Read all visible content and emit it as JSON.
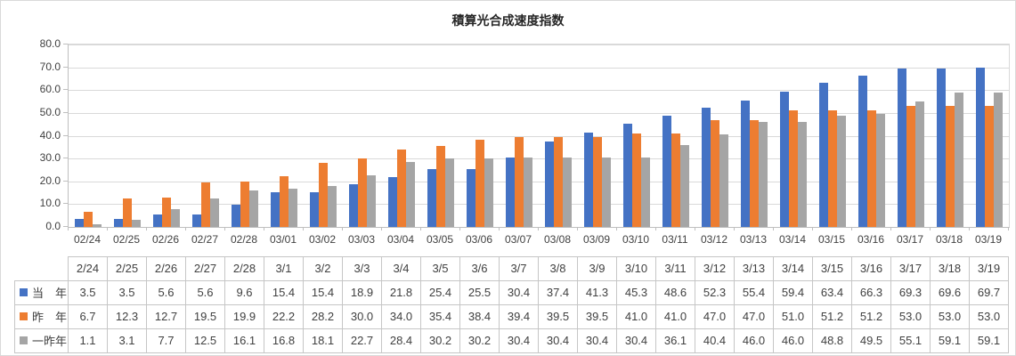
{
  "chart_data": {
    "type": "bar",
    "title": "積算光合成速度指数",
    "categories": [
      "02/24",
      "02/25",
      "02/26",
      "02/27",
      "02/28",
      "03/01",
      "03/02",
      "03/03",
      "03/04",
      "03/05",
      "03/06",
      "03/07",
      "03/08",
      "03/09",
      "03/10",
      "03/11",
      "03/12",
      "03/13",
      "03/14",
      "03/15",
      "03/16",
      "03/17",
      "03/18",
      "03/19"
    ],
    "series": [
      {
        "name": "当　年",
        "color": "#4472C4",
        "values": [
          3.5,
          3.5,
          5.6,
          5.6,
          9.6,
          15.4,
          15.4,
          18.9,
          21.8,
          25.4,
          25.5,
          30.4,
          37.4,
          41.3,
          45.3,
          48.6,
          52.3,
          55.4,
          59.4,
          63.4,
          66.3,
          69.3,
          69.6,
          69.7
        ]
      },
      {
        "name": "昨　年",
        "color": "#ED7D31",
        "values": [
          6.7,
          12.3,
          12.7,
          19.5,
          19.9,
          22.2,
          28.2,
          30.0,
          34.0,
          35.4,
          38.4,
          39.4,
          39.5,
          39.5,
          41.0,
          41.0,
          47.0,
          47.0,
          51.0,
          51.2,
          51.2,
          53.0,
          53.0,
          53.0
        ]
      },
      {
        "name": "一昨年",
        "color": "#A5A5A5",
        "values": [
          1.1,
          3.1,
          7.7,
          12.5,
          16.1,
          16.8,
          18.1,
          22.7,
          28.4,
          30.2,
          30.2,
          30.4,
          30.4,
          30.4,
          30.4,
          36.1,
          40.4,
          46.0,
          46.0,
          48.8,
          49.5,
          55.1,
          59.1,
          59.1
        ]
      }
    ],
    "ylim": [
      0,
      80
    ],
    "ytick_step": 10,
    "ytick_labels": [
      "0.0",
      "10.0",
      "20.0",
      "30.0",
      "40.0",
      "50.0",
      "60.0",
      "70.0",
      "80.0"
    ],
    "grid": true,
    "legend_position": "data-table-left"
  },
  "table": {
    "column_headers": [
      "2/24",
      "2/25",
      "2/26",
      "2/27",
      "2/28",
      "3/1",
      "3/2",
      "3/3",
      "3/4",
      "3/5",
      "3/6",
      "3/7",
      "3/8",
      "3/9",
      "3/10",
      "3/11",
      "3/12",
      "3/13",
      "3/14",
      "3/15",
      "3/16",
      "3/17",
      "3/18",
      "3/19"
    ],
    "row_labels": [
      "当　年",
      "昨　年",
      "一昨年"
    ]
  },
  "colors": {
    "series_blue": "#4472C4",
    "series_orange": "#ED7D31",
    "series_gray": "#A5A5A5",
    "gridline": "#D9D9D9",
    "axis": "#BFBFBF",
    "text": "#404040"
  }
}
